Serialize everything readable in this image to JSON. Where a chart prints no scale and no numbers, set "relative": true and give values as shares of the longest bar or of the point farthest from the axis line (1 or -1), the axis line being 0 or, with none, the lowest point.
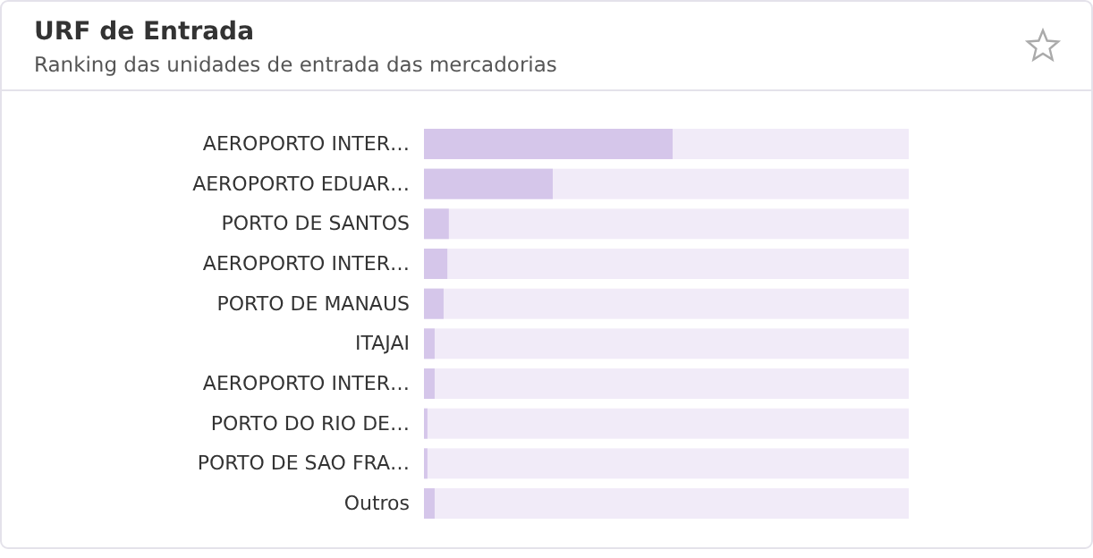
{
  "chart_data": {
    "type": "bar",
    "orientation": "horizontal",
    "relative": true,
    "title": "URF de Entrada",
    "subtitle": "Ranking das unidades de entrada das mercadorias",
    "categories": [
      "AEROPORTO INTER…",
      "AEROPORTO EDUAR…",
      "PORTO DE SANTOS",
      "AEROPORTO INTER…",
      "PORTO DE MANAUS",
      "ITAJAI",
      "AEROPORTO INTER…",
      "PORTO DO RIO DE…",
      "PORTO DE SAO FRA…",
      "Outros"
    ],
    "values": [
      1,
      0.518,
      0.1,
      0.094,
      0.079,
      0.043,
      0.043,
      0.014,
      0.014,
      0.043
    ],
    "color": "#d5c6ea"
  }
}
